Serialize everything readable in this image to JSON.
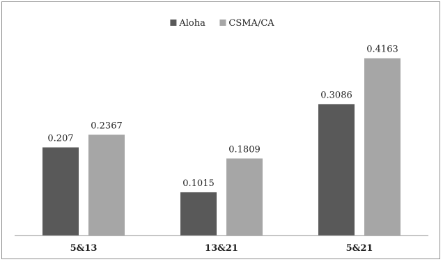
{
  "chart_data": {
    "type": "bar",
    "categories": [
      "5&13",
      "13&21",
      "5&21"
    ],
    "series": [
      {
        "name": "Aloha",
        "values": [
          0.207,
          0.1015,
          0.3086
        ],
        "labels": [
          "0.207",
          "0.1015",
          "0.3086"
        ],
        "color": "#595959"
      },
      {
        "name": "CSMA/CA",
        "values": [
          0.2367,
          0.1809,
          0.4163
        ],
        "labels": [
          "0.2367",
          "0.1809",
          "0.4163"
        ],
        "color": "#a6a6a6"
      }
    ],
    "title": "",
    "xlabel": "",
    "ylabel": "",
    "ylim": [
      0,
      0.45
    ],
    "grid": false,
    "legend": "top-center",
    "data_labels": true
  }
}
